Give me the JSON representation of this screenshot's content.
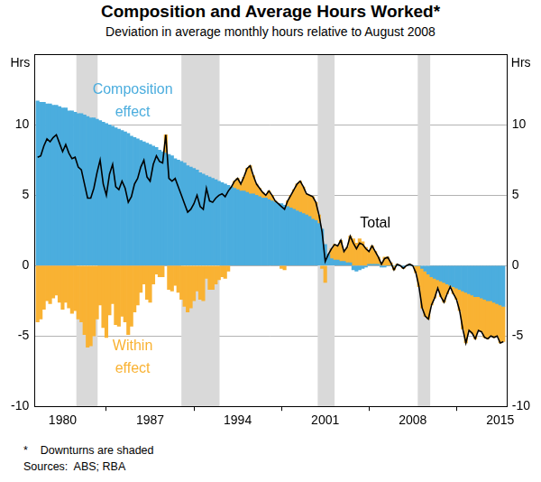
{
  "chart_data": {
    "type": "bar",
    "title": "Composition and Average Hours Worked*",
    "subtitle": "Deviation in average monthly hours relative to August 2008",
    "ylabel": "Hrs",
    "y2label": "Hrs",
    "notes": [
      "*    Downturns are shaded",
      "Sources:  ABS; RBA"
    ],
    "stacked": true,
    "grid": true,
    "xlim": [
      1977.75,
      2015.5
    ],
    "xticks": [
      1980,
      1987,
      1994,
      2001,
      2008,
      2015
    ],
    "ylim": [
      -10,
      15
    ],
    "yticks": [
      -10,
      -5,
      0,
      5,
      10
    ],
    "y2lim": [
      -10,
      15
    ],
    "y2ticks": [
      -10,
      -5,
      0,
      5,
      10
    ],
    "downturns": [
      [
        1981.1,
        1982.8
      ],
      [
        1989.5,
        1992.55
      ],
      [
        2000.4,
        2001.75
      ],
      [
        2008.4,
        2009.4
      ]
    ],
    "x": [
      1978,
      1978.25,
      1978.5,
      1978.75,
      1979,
      1979.25,
      1979.5,
      1979.75,
      1980,
      1980.25,
      1980.5,
      1980.75,
      1981,
      1981.25,
      1981.5,
      1981.75,
      1982,
      1982.25,
      1982.5,
      1982.75,
      1983,
      1983.25,
      1983.5,
      1983.75,
      1984,
      1984.25,
      1984.5,
      1984.75,
      1985,
      1985.25,
      1985.5,
      1985.75,
      1986,
      1986.25,
      1986.5,
      1986.75,
      1987,
      1987.25,
      1987.5,
      1987.75,
      1988,
      1988.25,
      1988.5,
      1988.75,
      1989,
      1989.25,
      1989.5,
      1989.75,
      1990,
      1990.25,
      1990.5,
      1990.75,
      1991,
      1991.25,
      1991.5,
      1991.75,
      1992,
      1992.25,
      1992.5,
      1992.75,
      1993,
      1993.25,
      1993.5,
      1993.75,
      1994,
      1994.25,
      1994.5,
      1994.75,
      1995,
      1995.25,
      1995.5,
      1995.75,
      1996,
      1996.25,
      1996.5,
      1996.75,
      1997,
      1997.25,
      1997.5,
      1997.75,
      1998,
      1998.25,
      1998.5,
      1998.75,
      1999,
      1999.25,
      1999.5,
      1999.75,
      2000,
      2000.25,
      2000.5,
      2000.75,
      2001,
      2001.25,
      2001.5,
      2001.75,
      2002,
      2002.25,
      2002.5,
      2002.75,
      2003,
      2003.25,
      2003.5,
      2003.75,
      2004,
      2004.25,
      2004.5,
      2004.75,
      2005,
      2005.25,
      2005.5,
      2005.75,
      2006,
      2006.25,
      2006.5,
      2006.75,
      2007,
      2007.25,
      2007.5,
      2007.75,
      2008,
      2008.25,
      2008.5,
      2008.75,
      2009,
      2009.25,
      2009.5,
      2009.75,
      2010,
      2010.25,
      2010.5,
      2010.75,
      2011,
      2011.25,
      2011.5,
      2011.75,
      2012,
      2012.25,
      2012.5,
      2012.75,
      2013,
      2013.25,
      2013.5,
      2013.75,
      2014,
      2014.25,
      2014.5,
      2014.75,
      2015,
      2015.25
    ],
    "series": [
      {
        "name": "Composition effect",
        "type": "bar",
        "color": "#4badde",
        "values": [
          11.7,
          11.6,
          11.6,
          11.5,
          11.5,
          11.4,
          11.4,
          11.3,
          11.2,
          11.2,
          11.0,
          11.0,
          10.9,
          10.8,
          10.8,
          10.7,
          10.6,
          10.5,
          10.5,
          10.4,
          10.3,
          10.2,
          10.1,
          10.0,
          9.9,
          9.8,
          9.7,
          9.6,
          9.5,
          9.4,
          9.2,
          9.1,
          9.0,
          8.9,
          8.8,
          8.7,
          8.6,
          8.5,
          8.4,
          8.2,
          8.1,
          8.0,
          7.9,
          7.8,
          7.6,
          7.5,
          7.4,
          7.3,
          7.1,
          7.0,
          6.9,
          6.8,
          6.6,
          6.5,
          6.4,
          6.3,
          6.2,
          6.1,
          6.0,
          5.9,
          5.8,
          5.7,
          5.6,
          5.5,
          5.4,
          5.3,
          5.3,
          5.2,
          5.1,
          5.1,
          5.0,
          4.9,
          4.8,
          4.8,
          4.7,
          4.6,
          4.5,
          4.4,
          4.4,
          4.3,
          4.2,
          4.1,
          4.0,
          3.9,
          3.8,
          3.7,
          3.6,
          3.5,
          3.3,
          3.2,
          3.0,
          2.6,
          1.5,
          0.8,
          0.5,
          0.4,
          0.4,
          0.3,
          0.3,
          0.2,
          0.2,
          -0.3,
          -0.4,
          -0.3,
          -0.2,
          -0.1,
          0.1,
          0.1,
          0.1,
          0.1,
          -0.1,
          -0.1,
          0.0,
          0.0,
          0.0,
          0.0,
          0.0,
          -0.1,
          0.0,
          0.0,
          0.0,
          0.0,
          0.0,
          -0.2,
          -0.4,
          -0.6,
          -0.8,
          -0.9,
          -1.0,
          -1.1,
          -1.2,
          -1.3,
          -1.4,
          -1.5,
          -1.6,
          -1.7,
          -1.8,
          -1.9,
          -2.0,
          -2.1,
          -2.2,
          -2.2,
          -2.3,
          -2.4,
          -2.5,
          -2.5,
          -2.6,
          -2.7,
          -2.8,
          -2.9
        ]
      },
      {
        "name": "Within effect",
        "type": "bar",
        "color": "#f9b233",
        "values": [
          -4.0,
          -3.8,
          -3.1,
          -2.5,
          -2.7,
          -2.3,
          -2.1,
          -2.6,
          -3.1,
          -2.6,
          -3.0,
          -3.4,
          -3.2,
          -3.8,
          -4.0,
          -4.9,
          -5.8,
          -5.7,
          -5.0,
          -3.8,
          -2.8,
          -4.4,
          -5.1,
          -3.5,
          -2.7,
          -4.2,
          -4.3,
          -3.6,
          -4.0,
          -4.9,
          -4.3,
          -3.3,
          -2.8,
          -1.9,
          -1.3,
          -2.4,
          -2.6,
          -1.3,
          -0.6,
          -0.8,
          -0.8,
          1.3,
          -1.7,
          -1.8,
          -1.4,
          -1.9,
          -2.4,
          -2.9,
          -3.3,
          -3.0,
          -2.5,
          -1.8,
          -2.4,
          -2.5,
          -0.9,
          -1.7,
          -1.7,
          -1.3,
          -1.0,
          -0.8,
          -0.9,
          -0.4,
          0.0,
          0.5,
          0.8,
          0.5,
          1.0,
          1.7,
          2.0,
          1.3,
          0.8,
          0.6,
          0.4,
          0.2,
          0.6,
          0.4,
          0.1,
          0.0,
          -0.2,
          -0.3,
          0.4,
          0.9,
          1.4,
          1.9,
          2.2,
          1.9,
          1.5,
          1.5,
          1.6,
          1.3,
          0.6,
          -0.2,
          -1.2,
          0.0,
          0.7,
          1.1,
          1.0,
          1.5,
          0.7,
          1.1,
          1.9,
          1.9,
          1.6,
          1.9,
          1.7,
          1.3,
          0.9,
          1.3,
          0.9,
          0.5,
          0.2,
          0.6,
          0.6,
          0.2,
          -0.3,
          0.1,
          0.0,
          -0.1,
          0.0,
          0.1,
          0.0,
          -0.5,
          -1.5,
          -2.8,
          -3.2,
          -3.2,
          -2.0,
          -1.4,
          -0.6,
          -1.1,
          -1.4,
          -0.7,
          -0.1,
          -0.5,
          -0.8,
          -1.5,
          -2.7,
          -3.6,
          -2.6,
          -2.7,
          -3.0,
          -2.4,
          -2.4,
          -2.7,
          -2.7,
          -2.5,
          -2.5,
          -2.3,
          -2.7,
          -2.5
        ]
      },
      {
        "name": "Total",
        "type": "line",
        "color": "#000000",
        "values": [
          7.7,
          7.8,
          8.5,
          9.0,
          8.8,
          9.1,
          9.3,
          8.7,
          8.1,
          8.6,
          8.0,
          7.6,
          7.7,
          7.0,
          6.8,
          5.8,
          4.8,
          4.8,
          5.5,
          6.6,
          7.5,
          5.8,
          5.0,
          6.5,
          7.2,
          5.6,
          5.4,
          6.0,
          5.5,
          4.5,
          4.9,
          5.8,
          6.2,
          7.0,
          7.5,
          6.3,
          6.0,
          7.2,
          7.8,
          7.4,
          7.3,
          9.3,
          6.2,
          6.0,
          6.2,
          5.6,
          5.0,
          4.4,
          3.8,
          4.0,
          4.4,
          5.0,
          4.2,
          4.0,
          5.5,
          4.6,
          4.5,
          4.8,
          5.0,
          5.1,
          4.9,
          5.3,
          5.6,
          6.0,
          6.2,
          5.8,
          6.3,
          6.9,
          7.1,
          6.4,
          5.8,
          5.5,
          5.2,
          5.0,
          5.3,
          5.0,
          4.6,
          4.4,
          4.2,
          4.0,
          4.6,
          5.0,
          5.4,
          5.8,
          6.0,
          5.6,
          5.1,
          5.0,
          4.9,
          4.5,
          3.6,
          2.4,
          0.3,
          0.8,
          1.2,
          1.5,
          1.4,
          1.8,
          1.0,
          1.3,
          2.1,
          1.6,
          1.2,
          1.6,
          1.5,
          1.2,
          1.0,
          1.4,
          1.0,
          0.6,
          0.1,
          0.5,
          0.6,
          0.2,
          -0.3,
          0.1,
          0.0,
          -0.2,
          0.0,
          0.1,
          0.0,
          -0.5,
          -1.5,
          -3.0,
          -3.6,
          -3.8,
          -2.8,
          -2.3,
          -1.6,
          -2.2,
          -2.6,
          -2.0,
          -1.5,
          -2.0,
          -2.4,
          -3.2,
          -4.5,
          -5.5,
          -4.6,
          -4.8,
          -5.2,
          -4.6,
          -4.7,
          -5.1,
          -5.2,
          -5.0,
          -5.1,
          -5.0,
          -5.5,
          -5.4
        ]
      }
    ]
  }
}
